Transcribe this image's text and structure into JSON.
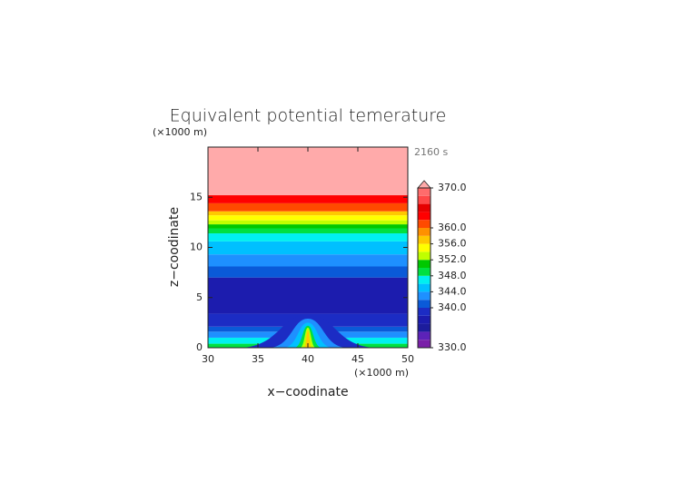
{
  "chart_data": {
    "type": "contour",
    "title": "Equivalent potential temerature",
    "annotation": "2160 s",
    "x_label": "x−coodinate",
    "y_label": "z−coodinate",
    "x_unit": "(×1000 m)",
    "y_unit": "(×1000 m)",
    "xlim": [
      30,
      50
    ],
    "xticks": [
      30,
      35,
      40,
      45,
      50
    ],
    "ylim": [
      0,
      20
    ],
    "yticks": [
      0,
      5,
      10,
      15
    ],
    "z_edges": [
      0,
      0.4,
      1.0,
      1.6,
      2.1,
      3.4,
      7.0,
      8.1,
      9.3,
      10.6,
      11.4,
      11.9,
      12.3,
      12.7,
      13.2,
      13.6,
      14.4,
      15.2,
      20
    ],
    "values": [
      349,
      346,
      343,
      341,
      339,
      337,
      341,
      343,
      345,
      347,
      349,
      351,
      353,
      355,
      357,
      361,
      363,
      371
    ],
    "bubble": [
      {
        "value": 339,
        "x0": 33,
        "x1": 47,
        "ztop": 3.3
      },
      {
        "value": 343,
        "x0": 36,
        "x1": 44,
        "ztop": 2.9
      },
      {
        "value": 345,
        "x0": 37.5,
        "x1": 42.5,
        "ztop": 2.5
      },
      {
        "value": 349,
        "x0": 38.6,
        "x1": 41.4,
        "ztop": 2.2
      },
      {
        "value": 353,
        "x0": 39.2,
        "x1": 40.8,
        "ztop": 2.0
      },
      {
        "value": 357,
        "x0": 39.6,
        "x1": 40.4,
        "ztop": 1.7
      }
    ],
    "levels": [
      330,
      332,
      334,
      336,
      338,
      340,
      342,
      344,
      346,
      348,
      350,
      352,
      354,
      356,
      358,
      360,
      362,
      364,
      366,
      368,
      370
    ],
    "colors": [
      "#7a1fa8",
      "#5c22b8",
      "#1c1c9c",
      "#1c1cae",
      "#1c2cc4",
      "#0a5ad8",
      "#1e90ff",
      "#00c0ff",
      "#00f0f0",
      "#00e040",
      "#00c800",
      "#c0ff00",
      "#ffff00",
      "#ffc800",
      "#ff9000",
      "#ff4a00",
      "#ff0000",
      "#e60000",
      "#ff4848",
      "#ff6c6c"
    ],
    "over_color": "#ffaaaa",
    "cbticks": [
      {
        "value": 370,
        "label": "370.0"
      },
      {
        "value": 360,
        "label": "360.0"
      },
      {
        "value": 356,
        "label": "356.0"
      },
      {
        "value": 352,
        "label": "352.0"
      },
      {
        "value": 348,
        "label": "348.0"
      },
      {
        "value": 344,
        "label": "344.0"
      },
      {
        "value": 340,
        "label": "340.0"
      },
      {
        "value": 330,
        "label": "330.0"
      }
    ]
  }
}
